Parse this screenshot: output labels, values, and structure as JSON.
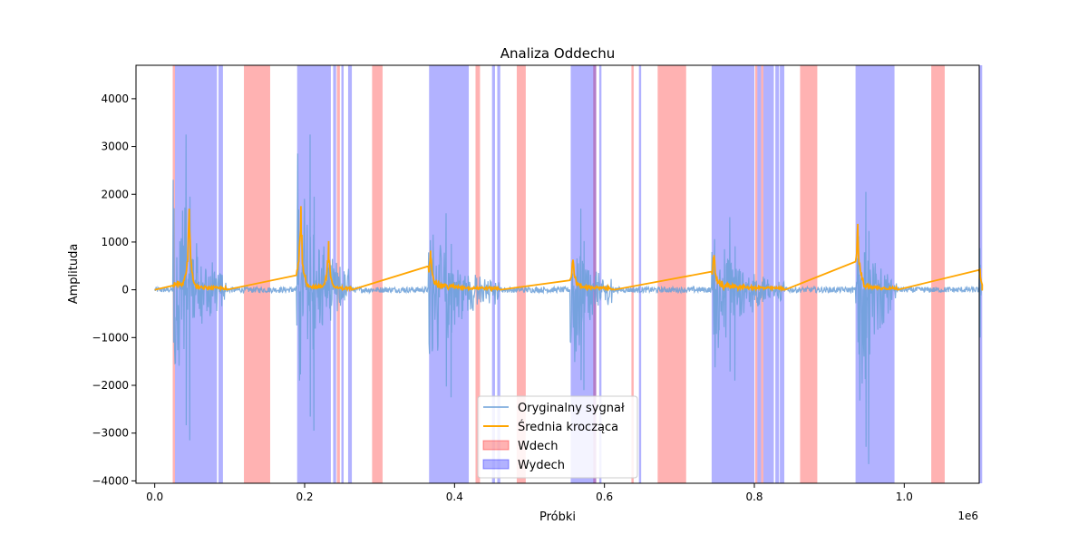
{
  "chart_data": {
    "type": "line",
    "title": "Analiza Oddechu",
    "xlabel": "Próbki",
    "ylabel": "Amplituda",
    "x_offset_label": "1e6",
    "xlim": [
      -0.025,
      1.1
    ],
    "ylim": [
      -4050,
      4700
    ],
    "x_ticks": [
      0.0,
      0.2,
      0.4,
      0.6,
      0.8,
      1.0
    ],
    "x_tick_labels": [
      "0.0",
      "0.2",
      "0.4",
      "0.6",
      "0.8",
      "1.0"
    ],
    "y_ticks": [
      -4000,
      -3000,
      -2000,
      -1000,
      0,
      1000,
      2000,
      3000,
      4000
    ],
    "y_tick_labels": [
      "−4000",
      "−3000",
      "−2000",
      "−1000",
      "0",
      "1000",
      "2000",
      "3000",
      "4000"
    ],
    "grid": false,
    "legend_position": "bottom-center",
    "legend": [
      {
        "label": "Oryginalny sygnał",
        "kind": "line",
        "color": "#6a9fd8"
      },
      {
        "label": "Średnia krocząca",
        "kind": "line",
        "color": "#ffa500"
      },
      {
        "label": "Wdech",
        "kind": "patch",
        "color": "#ff0000"
      },
      {
        "label": "Wydech",
        "kind": "patch",
        "color": "#0000ff"
      }
    ],
    "spans": {
      "wdech": [
        [
          0.024,
          0.027
        ],
        [
          0.119,
          0.154
        ],
        [
          0.243,
          0.247
        ],
        [
          0.29,
          0.304
        ],
        [
          0.428,
          0.434
        ],
        [
          0.483,
          0.495
        ],
        [
          0.585,
          0.589
        ],
        [
          0.636,
          0.639
        ],
        [
          0.671,
          0.709
        ],
        [
          0.801,
          0.804
        ],
        [
          0.809,
          0.812
        ],
        [
          0.861,
          0.884
        ],
        [
          1.036,
          1.054
        ]
      ],
      "wydech": [
        [
          0.027,
          0.083
        ],
        [
          0.085,
          0.091
        ],
        [
          0.19,
          0.235
        ],
        [
          0.238,
          0.242
        ],
        [
          0.249,
          0.252
        ],
        [
          0.258,
          0.263
        ],
        [
          0.366,
          0.419
        ],
        [
          0.45,
          0.454
        ],
        [
          0.457,
          0.461
        ],
        [
          0.555,
          0.589
        ],
        [
          0.593,
          0.596
        ],
        [
          0.646,
          0.649
        ],
        [
          0.743,
          0.8
        ],
        [
          0.804,
          0.809
        ],
        [
          0.812,
          0.826
        ],
        [
          0.828,
          0.833
        ],
        [
          0.834,
          0.84
        ],
        [
          0.935,
          0.987
        ],
        [
          1.1,
          1.104
        ]
      ]
    },
    "series": [
      {
        "name": "Oryginalny sygnał",
        "color": "#6a9fd8",
        "bursts": [
          {
            "start": 0.024,
            "end": 0.095,
            "peak_pos": 3250,
            "peak_neg": -3150
          },
          {
            "start": 0.189,
            "end": 0.262,
            "peak_pos": 3250,
            "peak_neg": -2950
          },
          {
            "start": 0.365,
            "end": 0.46,
            "peak_pos": 1600,
            "peak_neg": -2250
          },
          {
            "start": 0.554,
            "end": 0.612,
            "peak_pos": 1700,
            "peak_neg": -2100
          },
          {
            "start": 0.743,
            "end": 0.84,
            "peak_pos": 1520,
            "peak_neg": -1900
          },
          {
            "start": 0.935,
            "end": 0.99,
            "peak_pos": 2050,
            "peak_neg": -3650
          },
          {
            "start": 1.1,
            "end": 1.104,
            "peak_pos": 870,
            "peak_neg": -1000
          }
        ]
      },
      {
        "name": "Średnia krocząca",
        "color": "#ffa500",
        "peaks": [
          {
            "x": 0.046,
            "y": 1700
          },
          {
            "x": 0.195,
            "y": 1750
          },
          {
            "x": 0.232,
            "y": 1020
          },
          {
            "x": 0.368,
            "y": 820
          },
          {
            "x": 0.558,
            "y": 620
          },
          {
            "x": 0.746,
            "y": 650
          },
          {
            "x": 0.938,
            "y": 1380
          },
          {
            "x": 1.101,
            "y": 450
          }
        ]
      }
    ]
  }
}
